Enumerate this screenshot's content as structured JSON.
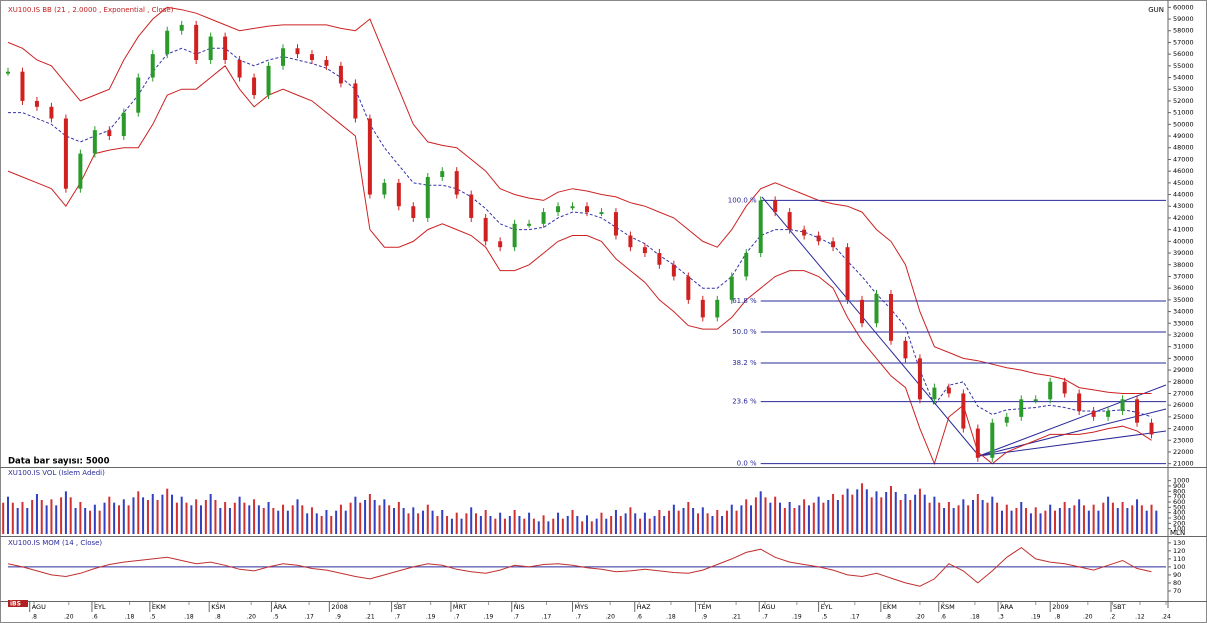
{
  "chart_data": [
    {
      "type": "price-bands",
      "title": "XU100.IS BB (21 , 2.0000 , Exponential , Close)",
      "corner_label": "GUN",
      "note": "Data bar sayısı: 5000",
      "xlim": [
        0,
        80
      ],
      "ylim": [
        20800,
        60200
      ],
      "yticks": [
        21000,
        22000,
        23000,
        24000,
        25000,
        26000,
        27000,
        28000,
        29000,
        30000,
        31000,
        32000,
        33000,
        34000,
        35000,
        36000,
        37000,
        38000,
        39000,
        40000,
        41000,
        42000,
        43000,
        44000,
        45000,
        46000,
        47000,
        48000,
        49000,
        50000,
        51000,
        52000,
        53000,
        54000,
        55000,
        56000,
        57000,
        58000,
        59000,
        60000
      ],
      "up_color": "#2a9a2a",
      "down_color": "#d02020",
      "close": [
        54500,
        52000,
        51500,
        50500,
        44500,
        47500,
        49500,
        49000,
        51000,
        54000,
        56000,
        58000,
        58500,
        55500,
        57500,
        55500,
        54000,
        52500,
        55000,
        56500,
        56000,
        55500,
        55000,
        53500,
        50500,
        44000,
        45000,
        43000,
        42000,
        45500,
        46000,
        44000,
        42000,
        40000,
        39500,
        41500,
        41500,
        42500,
        43000,
        43000,
        42500,
        42500,
        40500,
        39500,
        39000,
        38000,
        37000,
        35000,
        33500,
        35000,
        37000,
        39000,
        43500,
        42500,
        41000,
        40500,
        40000,
        39500,
        35000,
        33000,
        35500,
        31500,
        30000,
        26500,
        27500,
        27000,
        24000,
        21500,
        24500,
        25000,
        26500,
        26500,
        28000,
        27000,
        25500,
        25000,
        25500,
        26500,
        24500,
        23500
      ],
      "series": [
        {
          "color": "#cc2222",
          "style": "solid",
          "values": [
            57000,
            56500,
            55500,
            55000,
            53500,
            52000,
            52500,
            53000,
            55500,
            57500,
            59000,
            60000,
            59800,
            59500,
            59000,
            58500,
            58000,
            58200,
            58400,
            58500,
            58500,
            58500,
            58500,
            58200,
            58000,
            59000,
            56000,
            53000,
            50000,
            48500,
            48200,
            48000,
            47000,
            46000,
            44500,
            44000,
            43700,
            43500,
            44200,
            44500,
            44300,
            44000,
            43800,
            43300,
            43000,
            42500,
            42000,
            41000,
            40000,
            39500,
            41000,
            43000,
            44500,
            45000,
            44500,
            44000,
            43500,
            43200,
            43000,
            42500,
            41000,
            40000,
            38000,
            34000,
            31000,
            30500,
            30000,
            29800,
            29500,
            29200,
            29000,
            28700,
            28500,
            28200,
            27500,
            27300,
            27100,
            27000,
            27000,
            27000
          ]
        },
        {
          "color": "#3333aa",
          "style": "dashed",
          "values": [
            51000,
            51000,
            50500,
            50000,
            49000,
            48500,
            49000,
            49500,
            51000,
            52500,
            54500,
            56000,
            56500,
            56000,
            56500,
            56500,
            55500,
            55000,
            55500,
            55800,
            55500,
            55200,
            54800,
            54000,
            53000,
            50000,
            48000,
            46500,
            45000,
            44800,
            44800,
            44500,
            43800,
            42800,
            41500,
            41000,
            41000,
            41200,
            42000,
            42500,
            42400,
            42000,
            41200,
            40400,
            39800,
            38800,
            38000,
            37000,
            36000,
            36000,
            37000,
            39000,
            40500,
            41000,
            41000,
            40800,
            40300,
            39700,
            38300,
            37000,
            35500,
            34200,
            32700,
            29000,
            26000,
            27700,
            28000,
            25900,
            25200,
            25600,
            25700,
            25800,
            26000,
            25800,
            25500,
            25500,
            25500,
            25600,
            25400,
            25000
          ]
        },
        {
          "color": "#cc2222",
          "style": "solid",
          "values": [
            46000,
            45500,
            45000,
            44500,
            43000,
            45000,
            47500,
            47800,
            48000,
            48000,
            50000,
            52500,
            53000,
            53000,
            54000,
            55000,
            53000,
            51500,
            52500,
            53000,
            52500,
            52000,
            51000,
            50000,
            49000,
            41000,
            39500,
            39500,
            40000,
            41000,
            41500,
            41000,
            40500,
            39500,
            37500,
            37500,
            38000,
            39000,
            40000,
            40500,
            40500,
            40000,
            38500,
            37500,
            36500,
            35000,
            34000,
            32800,
            32500,
            32500,
            33500,
            35000,
            36000,
            37000,
            37500,
            37500,
            37000,
            36000,
            33500,
            31500,
            30000,
            28500,
            27500,
            24000,
            21000,
            25000,
            26000,
            22000,
            21000,
            22000,
            22500,
            23000,
            23500,
            23500,
            23500,
            23700,
            24000,
            24200,
            23800,
            23000
          ]
        }
      ],
      "fib_color": "#2a2a9a",
      "fib_start": 52,
      "fib_levels": [
        {
          "value": 43500,
          "label": "100.0 %"
        },
        {
          "value": 34900,
          "label": "61.8 %"
        },
        {
          "value": 32250,
          "label": "50.0 %"
        },
        {
          "value": 29600,
          "label": "38.2 %"
        },
        {
          "value": 26300,
          "label": "23.6 %"
        },
        {
          "value": 21000,
          "label": "0.0 %"
        }
      ]
    },
    {
      "type": "bar",
      "title": "XU100.IS VOL (Islem Adedi)",
      "unit_label": "MLN",
      "xlim": [
        0,
        80
      ],
      "ylim": [
        0,
        1200
      ],
      "yticks": [
        100,
        200,
        300,
        400,
        500,
        600,
        700,
        800,
        900,
        1000
      ],
      "colors": [
        "#d03030",
        "#3040c0"
      ],
      "values": [
        700,
        600,
        750,
        650,
        800,
        600,
        550,
        700,
        650,
        800,
        750,
        850,
        700,
        650,
        750,
        600,
        700,
        650,
        600,
        550,
        650,
        500,
        450,
        550,
        700,
        750,
        650,
        600,
        500,
        550,
        450,
        400,
        500,
        450,
        400,
        450,
        400,
        350,
        400,
        450,
        350,
        400,
        450,
        500,
        400,
        450,
        550,
        600,
        500,
        450,
        550,
        650,
        800,
        700,
        600,
        650,
        700,
        750,
        850,
        950,
        800,
        900,
        750,
        850,
        700,
        600,
        650,
        750,
        700,
        550,
        600,
        500,
        550,
        600,
        650,
        550,
        700,
        600,
        650,
        550
      ]
    },
    {
      "type": "line",
      "title": "XU100.IS MOM (14 , Close)",
      "logo": "iBS",
      "xlim": [
        0,
        80
      ],
      "ylim": [
        60,
        136
      ],
      "yticks": [
        70,
        80,
        90,
        100,
        110,
        120,
        130
      ],
      "reference": 100,
      "color": "#c03030",
      "ref_color": "#2a2a9a",
      "values": [
        104,
        100,
        95,
        90,
        88,
        92,
        98,
        103,
        106,
        108,
        110,
        112,
        108,
        104,
        106,
        102,
        97,
        95,
        100,
        104,
        102,
        98,
        96,
        92,
        88,
        85,
        90,
        95,
        100,
        104,
        102,
        97,
        94,
        92,
        96,
        102,
        100,
        103,
        104,
        102,
        99,
        97,
        94,
        95,
        97,
        95,
        93,
        92,
        96,
        103,
        110,
        118,
        122,
        112,
        106,
        103,
        100,
        96,
        90,
        88,
        92,
        86,
        80,
        76,
        85,
        104,
        95,
        80,
        95,
        112,
        124,
        110,
        106,
        104,
        100,
        96,
        102,
        108,
        98,
        94
      ],
      "xticks": [
        {
          "value": 1.5,
          "label": "AGU"
        },
        {
          "value": 5.8,
          "label": "EYL"
        },
        {
          "value": 9.8,
          "label": "EKM"
        },
        {
          "value": 13.9,
          "label": "KSM"
        },
        {
          "value": 18.2,
          "label": "ARA"
        },
        {
          "value": 22.2,
          "label": "2008"
        },
        {
          "value": 26.5,
          "label": "SBT"
        },
        {
          "value": 30.6,
          "label": "MRT"
        },
        {
          "value": 34.8,
          "label": "NIS"
        },
        {
          "value": 39,
          "label": "MYS"
        },
        {
          "value": 43.3,
          "label": "HAZ"
        },
        {
          "value": 47.5,
          "label": "TEM"
        },
        {
          "value": 51.9,
          "label": "AGU"
        },
        {
          "value": 56,
          "label": "EYL"
        },
        {
          "value": 60.3,
          "label": "EKM"
        },
        {
          "value": 64.3,
          "label": "KSM"
        },
        {
          "value": 68.4,
          "label": "ARA"
        },
        {
          "value": 72,
          "label": "2009"
        },
        {
          "value": 76.2,
          "label": "SBT"
        }
      ],
      "xticks_minor": [
        {
          "value": 1.8,
          "label": ".8"
        },
        {
          "value": 4.2,
          "label": ".20"
        },
        {
          "value": 6.0,
          "label": ".6"
        },
        {
          "value": 8.4,
          "label": ".18"
        },
        {
          "value": 10.0,
          "label": ".5"
        },
        {
          "value": 12.5,
          "label": ".18"
        },
        {
          "value": 14.5,
          "label": ".8"
        },
        {
          "value": 16.8,
          "label": ".20"
        },
        {
          "value": 18.5,
          "label": ".5"
        },
        {
          "value": 20.8,
          "label": ".17"
        },
        {
          "value": 22.8,
          "label": ".9"
        },
        {
          "value": 25.0,
          "label": ".21"
        },
        {
          "value": 26.9,
          "label": ".7"
        },
        {
          "value": 29.2,
          "label": ".19"
        },
        {
          "value": 31.0,
          "label": ".7"
        },
        {
          "value": 33.2,
          "label": ".19"
        },
        {
          "value": 35.1,
          "label": ".7"
        },
        {
          "value": 37.2,
          "label": ".17"
        },
        {
          "value": 39.4,
          "label": ".7"
        },
        {
          "value": 41.6,
          "label": ".20"
        },
        {
          "value": 43.6,
          "label": ".6"
        },
        {
          "value": 45.8,
          "label": ".18"
        },
        {
          "value": 48.1,
          "label": ".9"
        },
        {
          "value": 50.3,
          "label": ".21"
        },
        {
          "value": 52.3,
          "label": ".7"
        },
        {
          "value": 54.5,
          "label": ".19"
        },
        {
          "value": 56.4,
          "label": ".5"
        },
        {
          "value": 58.5,
          "label": ".17"
        },
        {
          "value": 60.8,
          "label": ".8"
        },
        {
          "value": 63.0,
          "label": ".20"
        },
        {
          "value": 64.6,
          "label": ".6"
        },
        {
          "value": 66.8,
          "label": ".18"
        },
        {
          "value": 68.6,
          "label": ".3"
        },
        {
          "value": 71.0,
          "label": ".19"
        },
        {
          "value": 72.5,
          "label": ".8"
        },
        {
          "value": 74.6,
          "label": ".20"
        },
        {
          "value": 76.3,
          "label": ".2"
        },
        {
          "value": 78.2,
          "label": ".12"
        },
        {
          "value": 80.0,
          "label": ".24"
        }
      ]
    }
  ]
}
